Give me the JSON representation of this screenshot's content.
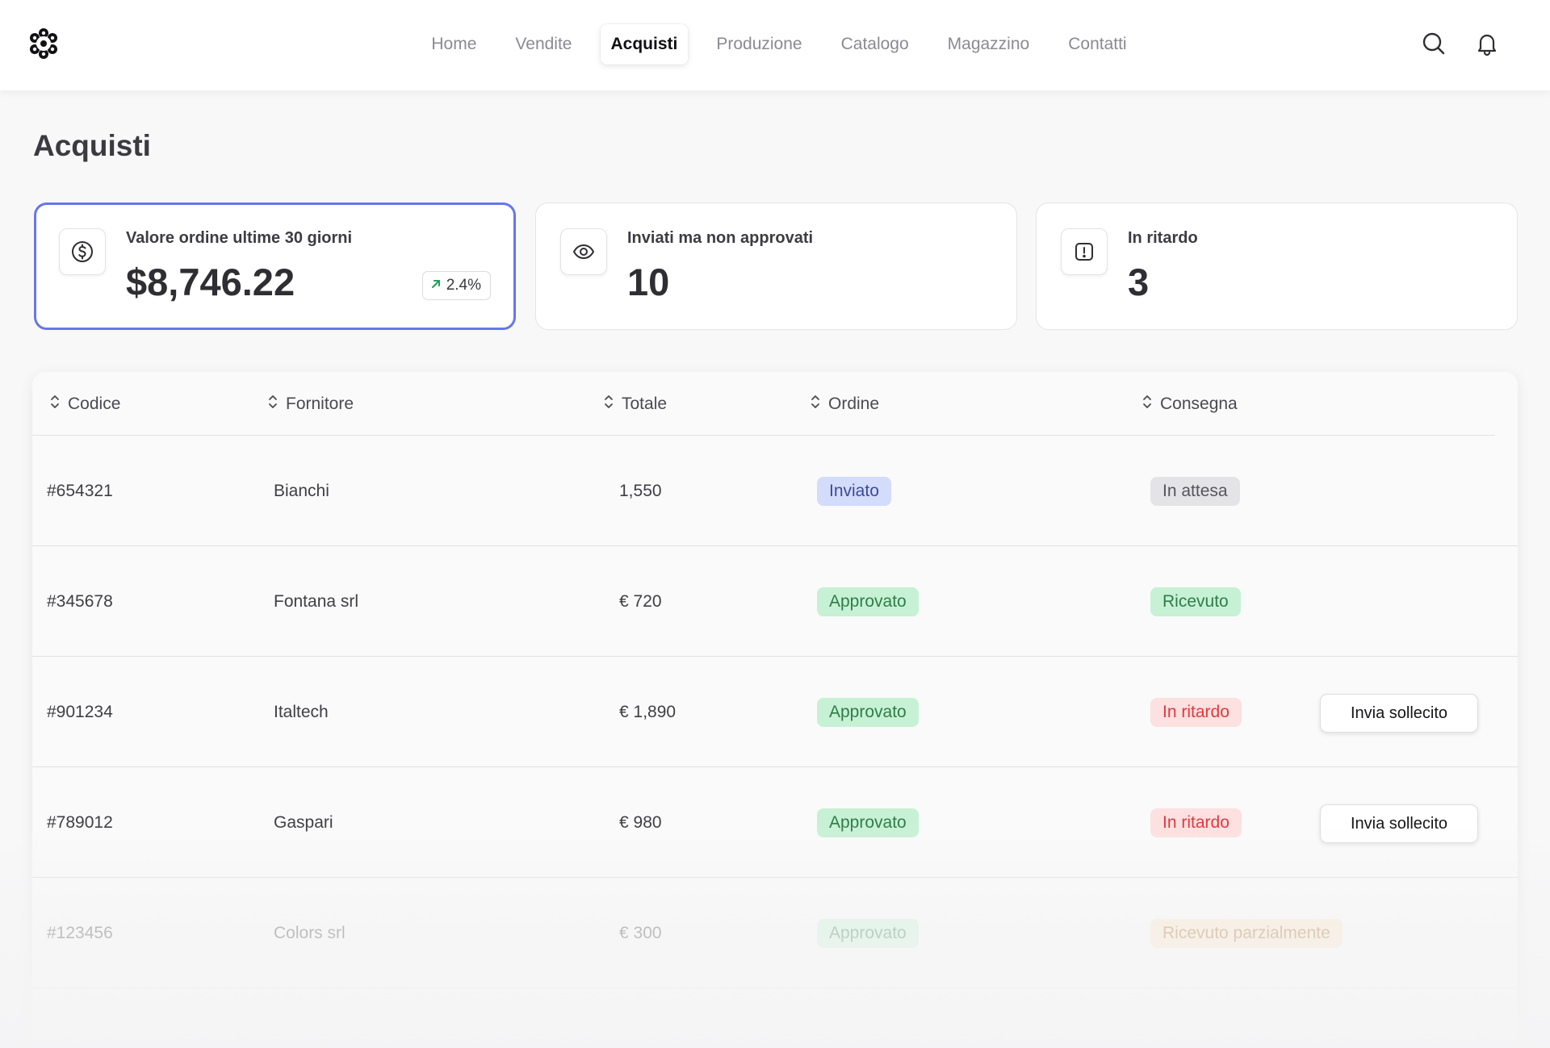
{
  "nav": {
    "items": [
      {
        "label": "Home"
      },
      {
        "label": "Vendite"
      },
      {
        "label": "Acquisti"
      },
      {
        "label": "Produzione"
      },
      {
        "label": "Catalogo"
      },
      {
        "label": "Magazzino"
      },
      {
        "label": "Contatti"
      }
    ],
    "active": "Acquisti"
  },
  "page": {
    "title": "Acquisti"
  },
  "stats": [
    {
      "label": "Valore ordine ultime 30 giorni",
      "value": "$8,746.22",
      "icon": "dollar-circle-icon",
      "trend": "2.4%",
      "trend_direction": "up"
    },
    {
      "label": "Inviati ma non approvati",
      "value": "10",
      "icon": "eye-icon"
    },
    {
      "label": "In ritardo",
      "value": "3",
      "icon": "alert-square-icon"
    }
  ],
  "table": {
    "columns": [
      "Codice",
      "Fornitore",
      "Totale",
      "Ordine",
      "Consegna"
    ],
    "rows": [
      {
        "code": "#654321",
        "supplier": "Bianchi",
        "total": "1,550",
        "order": "Inviato",
        "order_status": "sent",
        "delivery": "In attesa",
        "delivery_status": "pending"
      },
      {
        "code": "#345678",
        "supplier": "Fontana srl",
        "total": "€ 720",
        "order": "Approvato",
        "order_status": "approved",
        "delivery": "Ricevuto",
        "delivery_status": "received"
      },
      {
        "code": "#901234",
        "supplier": "Italtech",
        "total": "€ 1,890",
        "order": "Approvato",
        "order_status": "approved",
        "delivery": "In ritardo",
        "delivery_status": "late",
        "action": "Invia sollecito"
      },
      {
        "code": "#789012",
        "supplier": "Gaspari",
        "total": "€ 980",
        "order": "Approvato",
        "order_status": "approved",
        "delivery": "In ritardo",
        "delivery_status": "late",
        "action": "Invia sollecito"
      },
      {
        "code": "#123456",
        "supplier": "Colors srl",
        "total": "€ 300",
        "order": "Approvato",
        "order_status": "approved",
        "delivery": "Ricevuto parzialmente",
        "delivery_status": "partial"
      }
    ]
  },
  "colors": {
    "accent": "#6677e8",
    "sent": "#d4dcfb",
    "approved": "#c7f1d4",
    "pending": "#e4e4e7",
    "late": "#fde0e0",
    "partial": "#fae4c6",
    "trend_up": "#22a05a"
  }
}
